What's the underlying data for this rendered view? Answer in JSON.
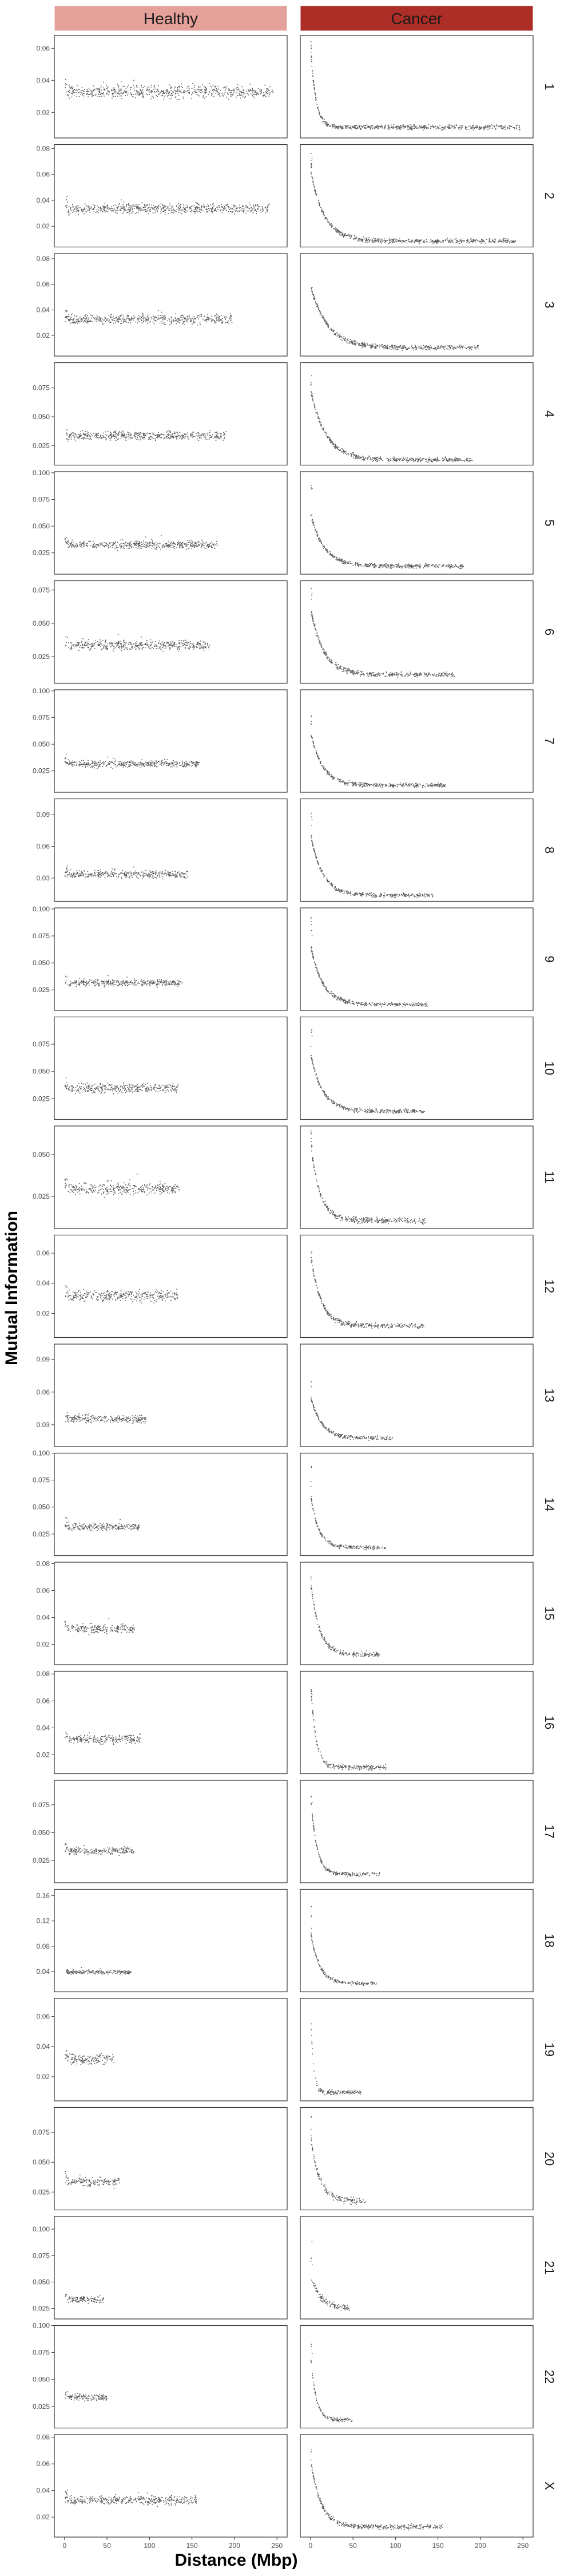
{
  "chart_data": {
    "type": "scatter",
    "facet_columns": [
      "Healthy",
      "Cancer"
    ],
    "facet_column_colors": [
      "#e4a19a",
      "#ac2e26"
    ],
    "facet_rows": [
      "1",
      "2",
      "3",
      "4",
      "5",
      "6",
      "7",
      "8",
      "9",
      "10",
      "11",
      "12",
      "13",
      "14",
      "15",
      "16",
      "17",
      "18",
      "19",
      "20",
      "21",
      "22",
      "X"
    ],
    "xlabel": "Distance (Mbp)",
    "ylabel": "Mutual Information",
    "xlim": [
      -12,
      262
    ],
    "x_ticks": [
      0,
      50,
      100,
      150,
      200,
      250
    ],
    "point_color": "#595959",
    "grid": false,
    "rows": [
      {
        "ylim": [
          0.004,
          0.068
        ],
        "y_ticks": [
          0.02,
          0.04,
          0.06
        ],
        "tick_decimals": 2,
        "max_mbp": 246,
        "healthy": {
          "level": 0.033,
          "spread": 0.0035
        },
        "cancer": {
          "start": 0.058,
          "floor": 0.011,
          "decay": 6,
          "spread": 0.0015
        }
      },
      {
        "ylim": [
          0.004,
          0.083
        ],
        "y_ticks": [
          0.02,
          0.04,
          0.06,
          0.08
        ],
        "tick_decimals": 2,
        "max_mbp": 241,
        "healthy": {
          "level": 0.034,
          "spread": 0.0035
        },
        "cancer": {
          "start": 0.062,
          "floor": 0.009,
          "decay": 16,
          "spread": 0.0018
        }
      },
      {
        "ylim": [
          0.004,
          0.084
        ],
        "y_ticks": [
          0.02,
          0.04,
          0.06,
          0.08
        ],
        "tick_decimals": 2,
        "max_mbp": 197,
        "healthy": {
          "level": 0.033,
          "spread": 0.0035
        },
        "cancer": {
          "start": 0.058,
          "floor": 0.011,
          "decay": 20,
          "spread": 0.002
        }
      },
      {
        "ylim": [
          0.008,
          0.097
        ],
        "y_ticks": [
          0.025,
          0.05,
          0.075
        ],
        "tick_decimals": 3,
        "max_mbp": 190,
        "healthy": {
          "level": 0.034,
          "spread": 0.0035
        },
        "cancer": {
          "start": 0.072,
          "floor": 0.013,
          "decay": 18,
          "spread": 0.002
        }
      },
      {
        "ylim": [
          0.005,
          0.101
        ],
        "y_ticks": [
          0.025,
          0.05,
          0.075,
          0.1
        ],
        "tick_decimals": 3,
        "max_mbp": 180,
        "healthy": {
          "level": 0.033,
          "spread": 0.0035
        },
        "cancer": {
          "start": 0.06,
          "floor": 0.013,
          "decay": 16,
          "spread": 0.002
        }
      },
      {
        "ylim": [
          0.005,
          0.082
        ],
        "y_ticks": [
          0.025,
          0.05,
          0.075
        ],
        "tick_decimals": 3,
        "max_mbp": 170,
        "healthy": {
          "level": 0.034,
          "spread": 0.0035
        },
        "cancer": {
          "start": 0.06,
          "floor": 0.012,
          "decay": 15,
          "spread": 0.002
        }
      },
      {
        "ylim": [
          0.005,
          0.101
        ],
        "y_ticks": [
          0.025,
          0.05,
          0.075,
          0.1
        ],
        "tick_decimals": 3,
        "max_mbp": 158,
        "healthy": {
          "level": 0.032,
          "spread": 0.003
        },
        "cancer": {
          "start": 0.06,
          "floor": 0.012,
          "decay": 14,
          "spread": 0.002
        }
      },
      {
        "ylim": [
          0.008,
          0.105
        ],
        "y_ticks": [
          0.03,
          0.06,
          0.09
        ],
        "tick_decimals": 2,
        "max_mbp": 145,
        "healthy": {
          "level": 0.034,
          "spread": 0.0035
        },
        "cancer": {
          "start": 0.07,
          "floor": 0.014,
          "decay": 14,
          "spread": 0.002
        }
      },
      {
        "ylim": [
          0.006,
          0.101
        ],
        "y_ticks": [
          0.025,
          0.05,
          0.075,
          0.1
        ],
        "tick_decimals": 3,
        "max_mbp": 138,
        "healthy": {
          "level": 0.032,
          "spread": 0.003
        },
        "cancer": {
          "start": 0.065,
          "floor": 0.012,
          "decay": 14,
          "spread": 0.002
        }
      },
      {
        "ylim": [
          0.006,
          0.1
        ],
        "y_ticks": [
          0.025,
          0.05,
          0.075
        ],
        "tick_decimals": 3,
        "max_mbp": 134,
        "healthy": {
          "level": 0.035,
          "spread": 0.004
        },
        "cancer": {
          "start": 0.065,
          "floor": 0.014,
          "decay": 14,
          "spread": 0.002
        }
      },
      {
        "ylim": [
          0.006,
          0.067
        ],
        "y_ticks": [
          0.025,
          0.05
        ],
        "tick_decimals": 3,
        "max_mbp": 135,
        "healthy": {
          "level": 0.03,
          "spread": 0.0035
        },
        "cancer": {
          "start": 0.055,
          "floor": 0.011,
          "decay": 11,
          "spread": 0.0018
        }
      },
      {
        "ylim": [
          0.004,
          0.072
        ],
        "y_ticks": [
          0.02,
          0.04,
          0.06
        ],
        "tick_decimals": 2,
        "max_mbp": 133,
        "healthy": {
          "level": 0.032,
          "spread": 0.0035
        },
        "cancer": {
          "start": 0.058,
          "floor": 0.012,
          "decay": 12,
          "spread": 0.0018
        }
      },
      {
        "ylim": [
          0.01,
          0.104
        ],
        "y_ticks": [
          0.03,
          0.06,
          0.09
        ],
        "tick_decimals": 2,
        "max_mbp": 96,
        "healthy": {
          "level": 0.036,
          "spread": 0.0035
        },
        "cancer": {
          "start": 0.055,
          "floor": 0.018,
          "decay": 13,
          "spread": 0.002
        }
      },
      {
        "ylim": [
          0.005,
          0.1
        ],
        "y_ticks": [
          0.025,
          0.05,
          0.075,
          0.1
        ],
        "tick_decimals": 3,
        "max_mbp": 88,
        "healthy": {
          "level": 0.032,
          "spread": 0.003
        },
        "cancer": {
          "start": 0.06,
          "floor": 0.013,
          "decay": 9,
          "spread": 0.002
        }
      },
      {
        "ylim": [
          0.005,
          0.081
        ],
        "y_ticks": [
          0.02,
          0.04,
          0.06,
          0.08
        ],
        "tick_decimals": 2,
        "max_mbp": 82,
        "healthy": {
          "level": 0.032,
          "spread": 0.003
        },
        "cancer": {
          "start": 0.065,
          "floor": 0.013,
          "decay": 10,
          "spread": 0.002
        }
      },
      {
        "ylim": [
          0.006,
          0.082
        ],
        "y_ticks": [
          0.02,
          0.04,
          0.06,
          0.08
        ],
        "tick_decimals": 2,
        "max_mbp": 89,
        "healthy": {
          "level": 0.032,
          "spread": 0.003
        },
        "cancer": {
          "start": 0.07,
          "floor": 0.011,
          "decay": 6,
          "spread": 0.002
        }
      },
      {
        "ylim": [
          0.005,
          0.097
        ],
        "y_ticks": [
          0.025,
          0.05,
          0.075
        ],
        "tick_decimals": 3,
        "max_mbp": 81,
        "healthy": {
          "level": 0.034,
          "spread": 0.003
        },
        "cancer": {
          "start": 0.08,
          "floor": 0.013,
          "decay": 7,
          "spread": 0.002
        }
      },
      {
        "ylim": [
          0.008,
          0.17
        ],
        "y_ticks": [
          0.04,
          0.08,
          0.12,
          0.16
        ],
        "tick_decimals": 2,
        "max_mbp": 78,
        "healthy": {
          "level": 0.04,
          "spread": 0.003
        },
        "cancer": {
          "start": 0.1,
          "floor": 0.022,
          "decay": 10,
          "spread": 0.003
        }
      },
      {
        "ylim": [
          0.004,
          0.072
        ],
        "y_ticks": [
          0.02,
          0.04,
          0.06
        ],
        "tick_decimals": 2,
        "max_mbp": 59,
        "healthy": {
          "level": 0.032,
          "spread": 0.003
        },
        "cancer": {
          "start": 0.058,
          "floor": 0.01,
          "decay": 3,
          "spread": 0.0015
        }
      },
      {
        "ylim": [
          0.01,
          0.096
        ],
        "y_ticks": [
          0.025,
          0.05,
          0.075
        ],
        "tick_decimals": 3,
        "max_mbp": 64,
        "healthy": {
          "level": 0.034,
          "spread": 0.003
        },
        "cancer": {
          "start": 0.07,
          "floor": 0.018,
          "decay": 10,
          "spread": 0.003
        }
      },
      {
        "ylim": [
          0.015,
          0.112
        ],
        "y_ticks": [
          0.025,
          0.05,
          0.075,
          0.1
        ],
        "tick_decimals": 3,
        "max_mbp": 46,
        "healthy": {
          "level": 0.034,
          "spread": 0.003
        },
        "cancer": {
          "start": 0.055,
          "floor": 0.025,
          "decay": 12,
          "spread": 0.003
        }
      },
      {
        "ylim": [
          0.005,
          0.1
        ],
        "y_ticks": [
          0.025,
          0.05,
          0.075,
          0.1
        ],
        "tick_decimals": 3,
        "max_mbp": 50,
        "healthy": {
          "level": 0.034,
          "spread": 0.003
        },
        "cancer": {
          "start": 0.07,
          "floor": 0.013,
          "decay": 6,
          "spread": 0.002
        }
      },
      {
        "ylim": [
          0.005,
          0.082
        ],
        "y_ticks": [
          0.02,
          0.04,
          0.06,
          0.08
        ],
        "tick_decimals": 2,
        "max_mbp": 155,
        "healthy": {
          "level": 0.033,
          "spread": 0.003
        },
        "cancer": {
          "start": 0.062,
          "floor": 0.013,
          "decay": 12,
          "spread": 0.002
        }
      }
    ]
  }
}
